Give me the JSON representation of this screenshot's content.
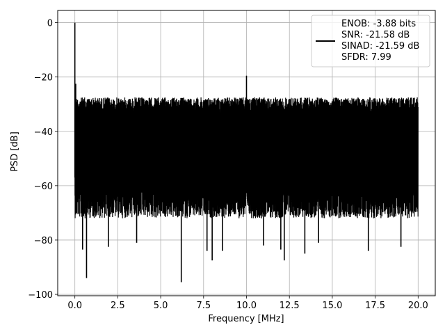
{
  "chart_data": {
    "type": "line",
    "title": "",
    "xlabel": "Frequency [MHz]",
    "ylabel": "PSD [dB]",
    "xlim": [
      -1.0,
      21.0
    ],
    "ylim": [
      -100.5,
      4.5
    ],
    "xticks": [
      0.0,
      2.5,
      5.0,
      7.5,
      10.0,
      12.5,
      15.0,
      17.5,
      20.0
    ],
    "xtick_labels": [
      "0.0",
      "2.5",
      "5.0",
      "7.5",
      "10.0",
      "12.5",
      "15.0",
      "17.5",
      "20.0"
    ],
    "yticks": [
      0,
      -20,
      -40,
      -60,
      -80,
      -100
    ],
    "ytick_labels": [
      "0",
      "−20",
      "−40",
      "−60",
      "−80",
      "−100"
    ],
    "grid": true,
    "legend_position": "top-right",
    "series": [
      {
        "name": "",
        "color": "#000000",
        "description": "",
        "x_range": [
          0.0,
          20.0
        ],
        "noise_floor_top_db": -25.5,
        "noise_floor_typical_low_db": -70,
        "peaks": [
          {
            "x": 0.0,
            "y": 0.0
          },
          {
            "x": 0.05,
            "y": -22.5
          },
          {
            "x": 10.0,
            "y": -19.5
          }
        ],
        "deep_notches": [
          {
            "x": 0.45,
            "y": -83.5
          },
          {
            "x": 0.68,
            "y": -94.0
          },
          {
            "x": 1.95,
            "y": -82.5
          },
          {
            "x": 3.6,
            "y": -81.0
          },
          {
            "x": 6.2,
            "y": -95.5
          },
          {
            "x": 7.7,
            "y": -84.0
          },
          {
            "x": 8.0,
            "y": -87.5
          },
          {
            "x": 8.6,
            "y": -84.0
          },
          {
            "x": 11.0,
            "y": -82.0
          },
          {
            "x": 12.0,
            "y": -83.5
          },
          {
            "x": 12.2,
            "y": -87.5
          },
          {
            "x": 13.4,
            "y": -85.0
          },
          {
            "x": 14.2,
            "y": -81.0
          },
          {
            "x": 17.1,
            "y": -84.0
          },
          {
            "x": 19.0,
            "y": -82.5
          }
        ]
      }
    ],
    "legend": {
      "lines": [
        "ENOB: -3.88 bits",
        "SNR: -21.58 dB",
        "SINAD: -21.59 dB",
        "SFDR: 7.99"
      ]
    }
  }
}
